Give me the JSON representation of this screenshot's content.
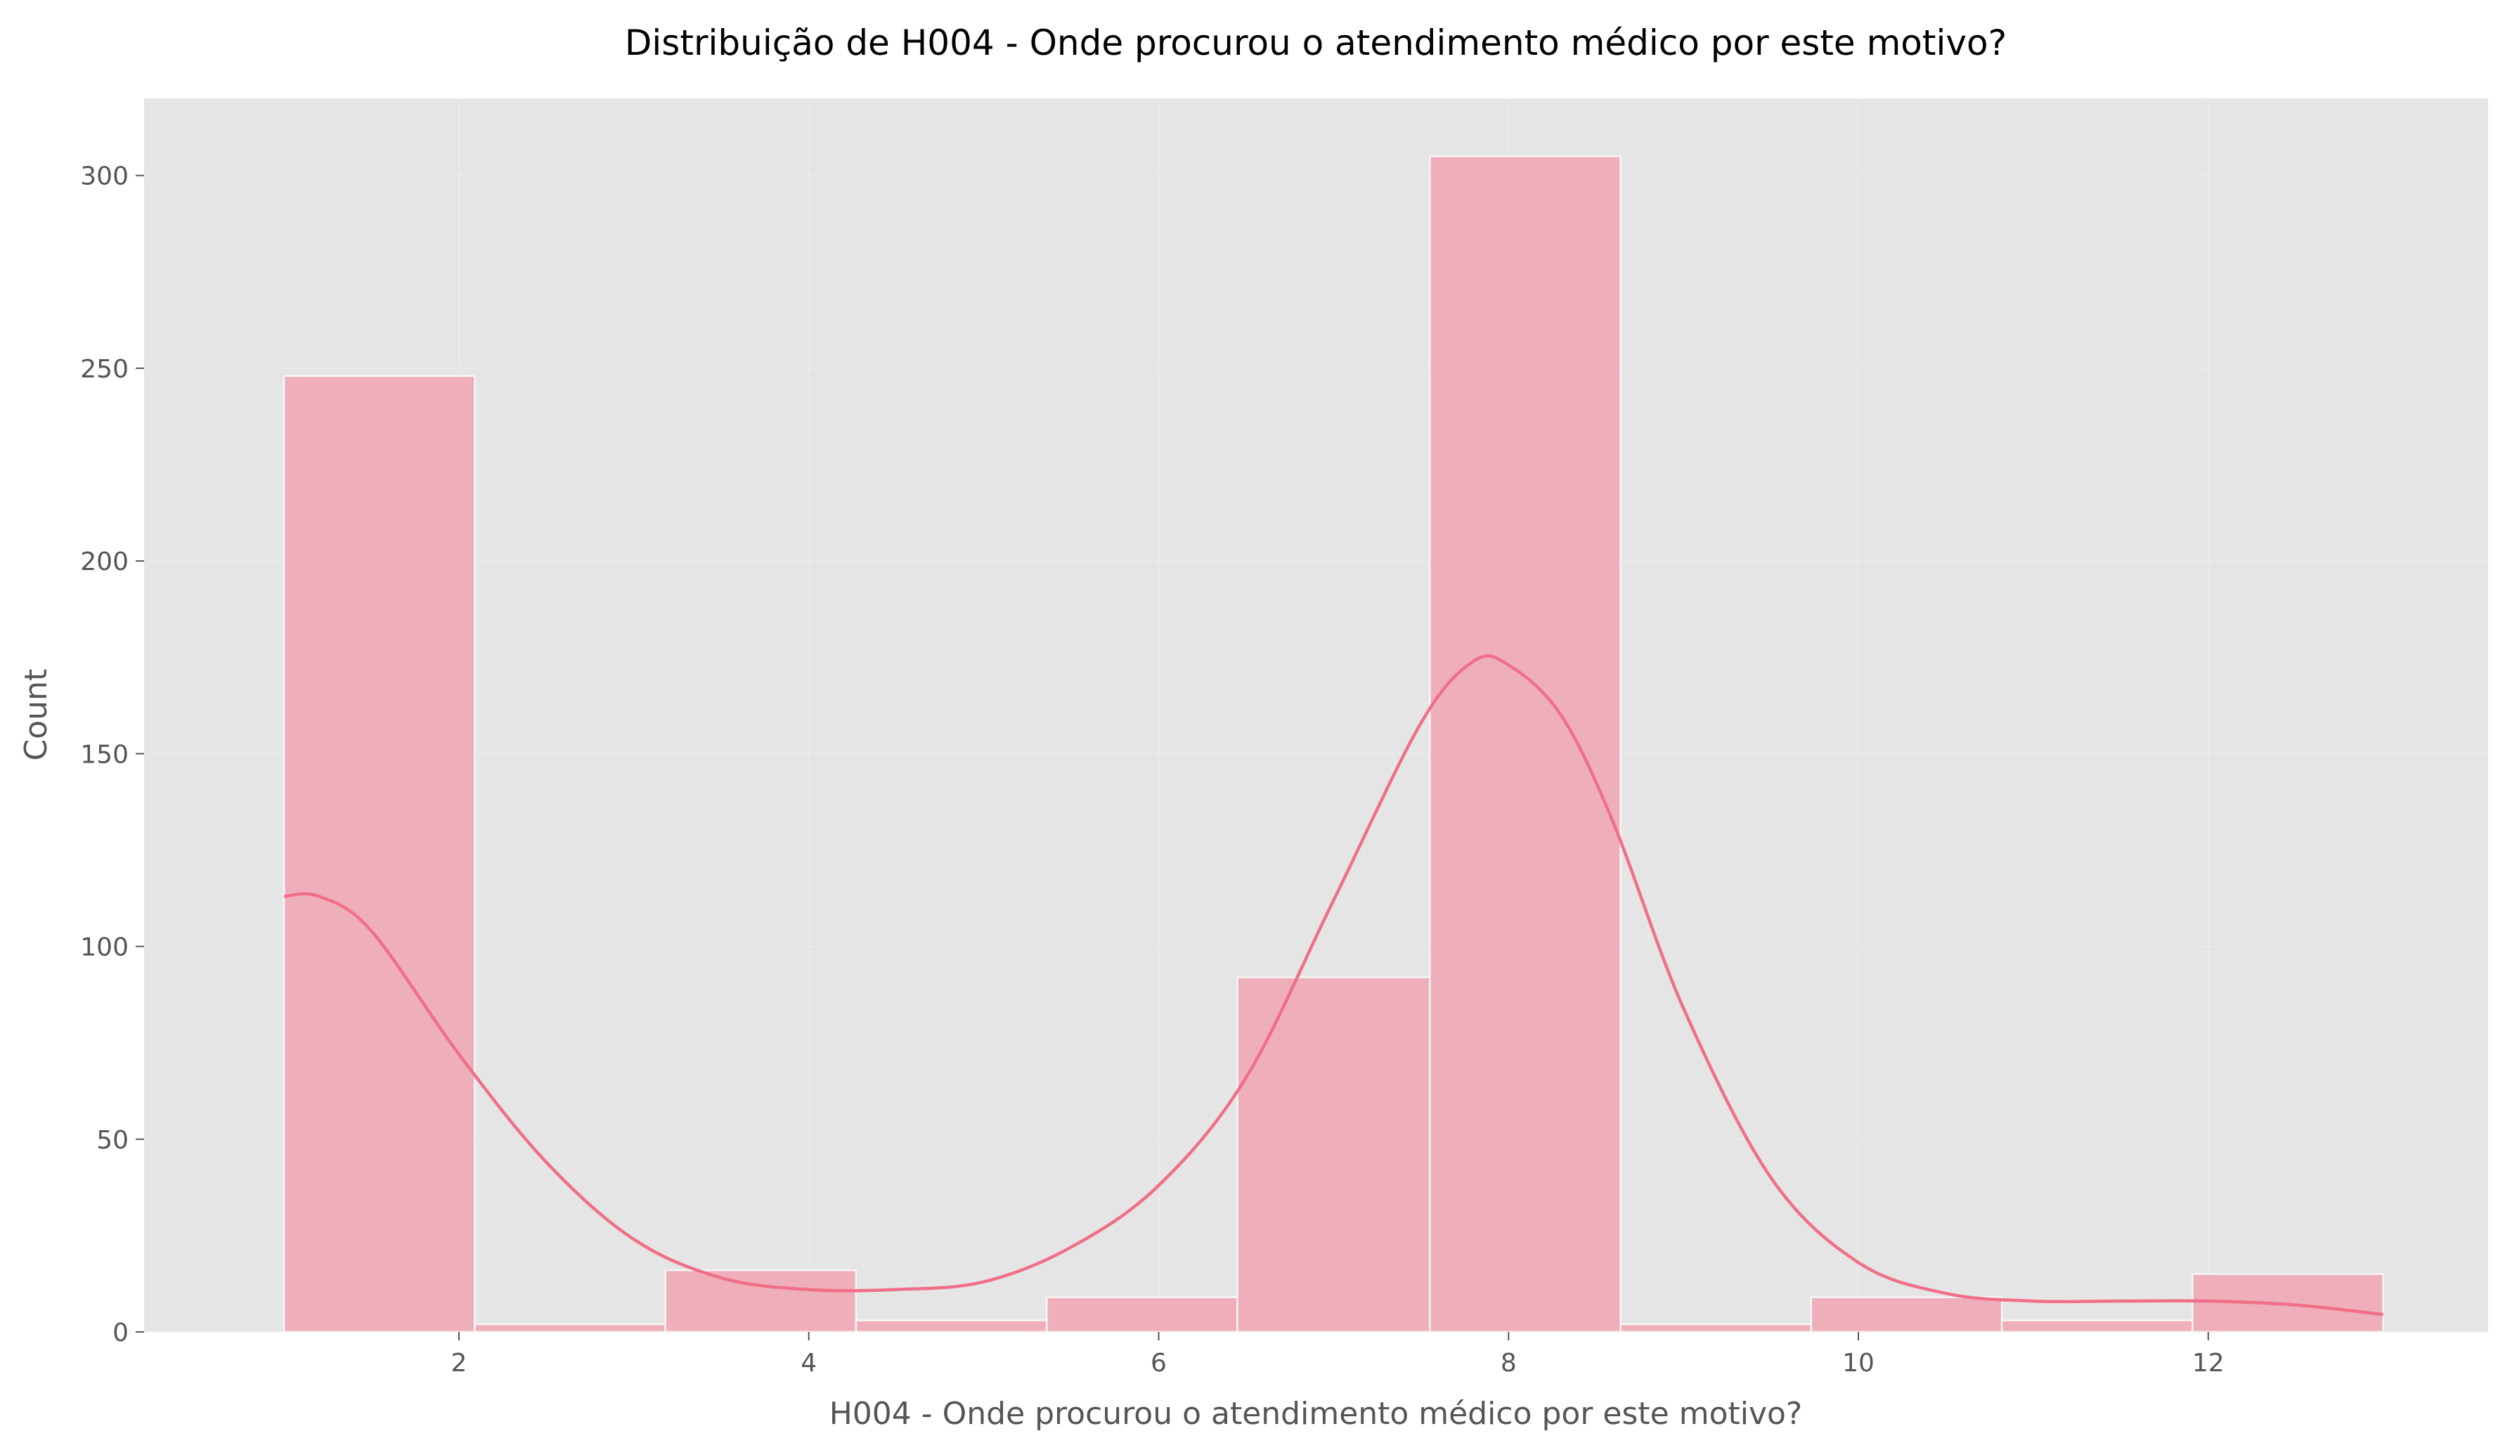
{
  "chart_data": {
    "type": "bar",
    "title": "Distribuição de H004 - Onde procurou o atendimento médico por este motivo?",
    "xlabel": "H004 - Onde procurou o atendimento médico por este motivo?",
    "ylabel": "Count",
    "xlim": [
      0.2,
      13.6
    ],
    "ylim": [
      0,
      320
    ],
    "x_ticks": [
      2,
      4,
      6,
      8,
      10,
      12
    ],
    "y_ticks": [
      0,
      50,
      100,
      150,
      200,
      250,
      300
    ],
    "grid": true,
    "bins": [
      {
        "x0": 1.0,
        "x1": 2.09,
        "count": 248
      },
      {
        "x0": 2.09,
        "x1": 3.18,
        "count": 2
      },
      {
        "x0": 3.18,
        "x1": 4.27,
        "count": 16
      },
      {
        "x0": 4.27,
        "x1": 5.36,
        "count": 3
      },
      {
        "x0": 5.36,
        "x1": 6.45,
        "count": 9
      },
      {
        "x0": 6.45,
        "x1": 7.55,
        "count": 92
      },
      {
        "x0": 7.55,
        "x1": 8.64,
        "count": 305
      },
      {
        "x0": 8.64,
        "x1": 9.73,
        "count": 2
      },
      {
        "x0": 9.73,
        "x1": 10.82,
        "count": 9
      },
      {
        "x0": 10.82,
        "x1": 11.91,
        "count": 3
      },
      {
        "x0": 11.91,
        "x1": 13.0,
        "count": 15
      }
    ],
    "kde_curve": [
      [
        1.0,
        113
      ],
      [
        1.2,
        113
      ],
      [
        1.5,
        104
      ],
      [
        2.0,
        72
      ],
      [
        2.5,
        44
      ],
      [
        3.0,
        24
      ],
      [
        3.5,
        14
      ],
      [
        4.0,
        11
      ],
      [
        4.5,
        11
      ],
      [
        5.0,
        13
      ],
      [
        5.5,
        22
      ],
      [
        6.0,
        38
      ],
      [
        6.5,
        66
      ],
      [
        7.0,
        112
      ],
      [
        7.5,
        158
      ],
      [
        7.8,
        174
      ],
      [
        8.0,
        173
      ],
      [
        8.3,
        160
      ],
      [
        8.6,
        132
      ],
      [
        9.0,
        84
      ],
      [
        9.5,
        40
      ],
      [
        10.0,
        18
      ],
      [
        10.5,
        10
      ],
      [
        11.0,
        8
      ],
      [
        11.5,
        8
      ],
      [
        12.0,
        8
      ],
      [
        12.5,
        7
      ],
      [
        13.0,
        4.5
      ]
    ],
    "colors": {
      "bar_fill": "#eea8b6",
      "line": "#f06f87",
      "plot_background": "#e5e5e5"
    }
  }
}
